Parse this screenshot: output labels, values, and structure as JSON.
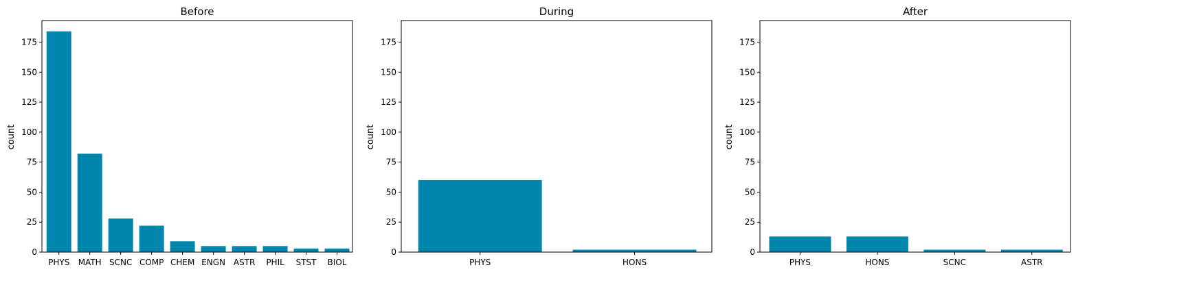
{
  "figure": {
    "bar_color": "#0086ad"
  },
  "chart_data": [
    {
      "type": "bar",
      "title": "Before",
      "xlabel": "",
      "ylabel": "count",
      "ylim": [
        0,
        193
      ],
      "yticks": [
        0,
        25,
        50,
        75,
        100,
        125,
        150,
        175
      ],
      "categories": [
        "PHYS",
        "MATH",
        "SCNC",
        "COMP",
        "CHEM",
        "ENGN",
        "ASTR",
        "PHIL",
        "STST",
        "BIOL"
      ],
      "values": [
        184,
        82,
        28,
        22,
        9,
        5,
        5,
        5,
        3,
        3
      ],
      "grid": false,
      "legend": "none"
    },
    {
      "type": "bar",
      "title": "During",
      "xlabel": "",
      "ylabel": "count",
      "ylim": [
        0,
        193
      ],
      "yticks": [
        0,
        25,
        50,
        75,
        100,
        125,
        150,
        175
      ],
      "categories": [
        "PHYS",
        "HONS"
      ],
      "values": [
        60,
        2
      ],
      "grid": false,
      "legend": "none"
    },
    {
      "type": "bar",
      "title": "After",
      "xlabel": "",
      "ylabel": "count",
      "ylim": [
        0,
        193
      ],
      "yticks": [
        0,
        25,
        50,
        75,
        100,
        125,
        150,
        175
      ],
      "categories": [
        "PHYS",
        "HONS",
        "SCNC",
        "ASTR"
      ],
      "values": [
        13,
        13,
        2,
        2
      ],
      "grid": false,
      "legend": "none"
    }
  ]
}
